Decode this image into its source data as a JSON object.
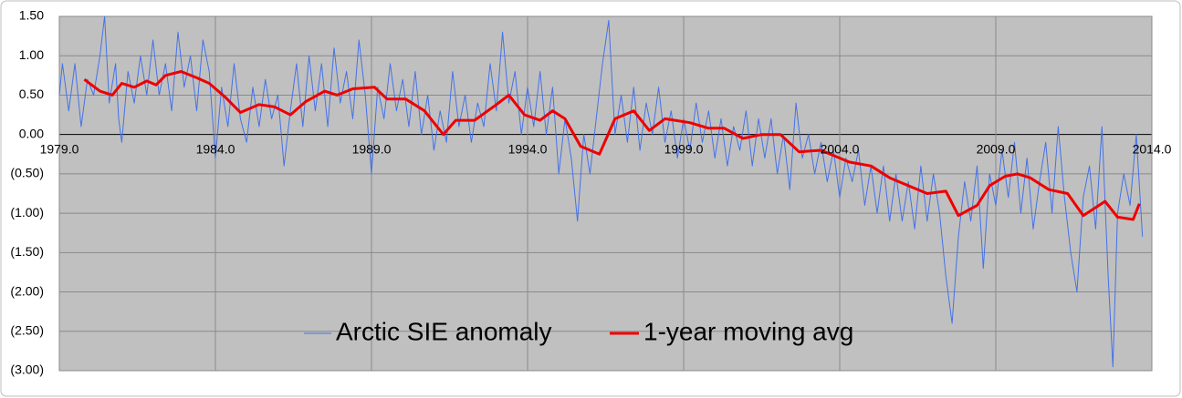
{
  "chart_data": {
    "type": "line",
    "xlim": [
      1979,
      2014
    ],
    "ylim": [
      -3,
      1.5
    ],
    "xticks": [
      {
        "value": 1979,
        "label": "1979.0"
      },
      {
        "value": 1984,
        "label": "1984.0"
      },
      {
        "value": 1989,
        "label": "1989.0"
      },
      {
        "value": 1994,
        "label": "1994.0"
      },
      {
        "value": 1999,
        "label": "1999.0"
      },
      {
        "value": 2004,
        "label": "2004.0"
      },
      {
        "value": 2009,
        "label": "2009.0"
      },
      {
        "value": 2014,
        "label": "2014.0"
      }
    ],
    "yticks": [
      {
        "value": 1.5,
        "label": "1.50"
      },
      {
        "value": 1,
        "label": "1.00"
      },
      {
        "value": 0.5,
        "label": "0.50"
      },
      {
        "value": 0,
        "label": "0.00"
      },
      {
        "value": -0.5,
        "label": "(0.50)"
      },
      {
        "value": -1,
        "label": "(1.00)"
      },
      {
        "value": -1.5,
        "label": "(1.50)"
      },
      {
        "value": -2,
        "label": "(2.00)"
      },
      {
        "value": -2.5,
        "label": "(2.50)"
      },
      {
        "value": -3,
        "label": "(3.00)"
      }
    ],
    "grid": true,
    "negative_tick_color": "#ff0000",
    "series": [
      {
        "name": "Arctic SIE anomaly",
        "color": "#4472e8",
        "width": 1,
        "x": [
          1979.0,
          1979.1,
          1979.3,
          1979.5,
          1979.7,
          1979.9,
          1980.1,
          1980.3,
          1980.45,
          1980.6,
          1980.8,
          1980.9,
          1981.0,
          1981.2,
          1981.4,
          1981.6,
          1981.8,
          1982.0,
          1982.2,
          1982.4,
          1982.6,
          1982.8,
          1983.0,
          1983.2,
          1983.4,
          1983.6,
          1983.8,
          1984.0,
          1984.2,
          1984.4,
          1984.6,
          1984.8,
          1985.0,
          1985.2,
          1985.4,
          1985.6,
          1985.8,
          1986.0,
          1986.2,
          1986.4,
          1986.6,
          1986.8,
          1987.0,
          1987.2,
          1987.4,
          1987.6,
          1987.8,
          1988.0,
          1988.2,
          1988.4,
          1988.6,
          1988.8,
          1989.0,
          1989.2,
          1989.4,
          1989.6,
          1989.8,
          1990.0,
          1990.2,
          1990.4,
          1990.6,
          1990.8,
          1991.0,
          1991.2,
          1991.4,
          1991.6,
          1991.8,
          1992.0,
          1992.2,
          1992.4,
          1992.6,
          1992.8,
          1993.0,
          1993.2,
          1993.4,
          1993.6,
          1993.8,
          1994.0,
          1994.2,
          1994.4,
          1994.6,
          1994.8,
          1995.0,
          1995.2,
          1995.4,
          1995.6,
          1995.8,
          1996.0,
          1996.2,
          1996.4,
          1996.6,
          1996.8,
          1997.0,
          1997.2,
          1997.4,
          1997.6,
          1997.8,
          1998.0,
          1998.2,
          1998.4,
          1998.6,
          1998.8,
          1999.0,
          1999.2,
          1999.4,
          1999.6,
          1999.8,
          2000.0,
          2000.2,
          2000.4,
          2000.6,
          2000.8,
          2001.0,
          2001.2,
          2001.4,
          2001.6,
          2001.8,
          2002.0,
          2002.2,
          2002.4,
          2002.6,
          2002.8,
          2003.0,
          2003.2,
          2003.4,
          2003.6,
          2003.8,
          2004.0,
          2004.2,
          2004.4,
          2004.6,
          2004.8,
          2005.0,
          2005.2,
          2005.4,
          2005.6,
          2005.8,
          2006.0,
          2006.2,
          2006.4,
          2006.6,
          2006.8,
          2007.0,
          2007.2,
          2007.4,
          2007.6,
          2007.8,
          2008.0,
          2008.2,
          2008.4,
          2008.6,
          2008.8,
          2009.0,
          2009.2,
          2009.4,
          2009.6,
          2009.8,
          2010.0,
          2010.2,
          2010.4,
          2010.6,
          2010.8,
          2011.0,
          2011.2,
          2011.4,
          2011.6,
          2011.8,
          2012.0,
          2012.2,
          2012.4,
          2012.6,
          2012.75,
          2012.9,
          2013.1,
          2013.3,
          2013.5,
          2013.7
        ],
        "values": [
          0.5,
          0.9,
          0.3,
          0.9,
          0.1,
          0.7,
          0.5,
          1.0,
          1.5,
          0.4,
          0.9,
          0.2,
          -0.1,
          0.8,
          0.4,
          1.0,
          0.5,
          1.2,
          0.5,
          0.9,
          0.3,
          1.3,
          0.6,
          1.0,
          0.3,
          1.2,
          0.8,
          -0.3,
          0.6,
          0.1,
          0.9,
          0.2,
          -0.1,
          0.6,
          0.1,
          0.7,
          0.2,
          0.5,
          -0.4,
          0.3,
          0.9,
          0.1,
          1.0,
          0.3,
          0.9,
          0.1,
          1.1,
          0.4,
          0.8,
          0.2,
          1.2,
          0.5,
          -0.5,
          0.6,
          0.2,
          0.9,
          0.3,
          0.7,
          0.1,
          0.8,
          0.0,
          0.5,
          -0.2,
          0.3,
          -0.1,
          0.8,
          0.1,
          0.5,
          -0.1,
          0.4,
          0.1,
          0.9,
          0.3,
          1.3,
          0.4,
          0.8,
          0.0,
          0.6,
          0.1,
          0.8,
          0.0,
          0.6,
          -0.5,
          0.2,
          -0.3,
          -1.1,
          0.0,
          -0.5,
          0.2,
          0.9,
          1.45,
          0.0,
          0.5,
          -0.1,
          0.6,
          -0.2,
          0.4,
          0.0,
          0.6,
          -0.1,
          0.3,
          -0.3,
          0.2,
          -0.2,
          0.4,
          -0.1,
          0.3,
          -0.3,
          0.2,
          -0.4,
          0.1,
          -0.2,
          0.3,
          -0.4,
          0.2,
          -0.3,
          0.2,
          -0.5,
          0.0,
          -0.7,
          0.4,
          -0.3,
          0.0,
          -0.5,
          -0.1,
          -0.6,
          -0.2,
          -0.8,
          -0.3,
          -0.6,
          -0.2,
          -0.9,
          -0.4,
          -1.0,
          -0.4,
          -1.1,
          -0.5,
          -1.1,
          -0.6,
          -1.2,
          -0.4,
          -1.1,
          -0.5,
          -1.0,
          -1.8,
          -2.4,
          -1.3,
          -0.6,
          -1.1,
          -0.4,
          -1.7,
          -0.5,
          -0.9,
          -0.2,
          -0.8,
          -0.1,
          -1.0,
          -0.3,
          -1.2,
          -0.6,
          -0.1,
          -1.0,
          0.1,
          -0.8,
          -1.5,
          -2.0,
          -0.8,
          -0.4,
          -1.2,
          0.1,
          -1.8,
          -2.95,
          -1.0,
          -0.5,
          -0.9,
          0.0,
          -1.3
        ]
      },
      {
        "name": "1-year moving avg",
        "color": "#ee0000",
        "width": 3,
        "x": [
          1979.8,
          1980.3,
          1980.7,
          1981.0,
          1981.4,
          1981.8,
          1982.1,
          1982.4,
          1982.9,
          1983.4,
          1983.8,
          1984.3,
          1984.8,
          1985.4,
          1985.9,
          1986.4,
          1986.9,
          1987.5,
          1987.9,
          1988.4,
          1989.1,
          1989.5,
          1990.1,
          1990.7,
          1991.3,
          1991.7,
          1992.3,
          1992.9,
          1993.4,
          1993.9,
          1994.4,
          1994.8,
          1995.2,
          1995.7,
          1996.3,
          1996.8,
          1997.4,
          1997.9,
          1998.4,
          1999.2,
          1999.8,
          2000.3,
          2000.9,
          2001.5,
          2002.1,
          2002.7,
          2003.4,
          2004.3,
          2005.0,
          2005.6,
          2006.2,
          2006.8,
          2007.4,
          2007.8,
          2008.4,
          2008.8,
          2009.3,
          2009.7,
          2010.1,
          2010.7,
          2011.3,
          2011.8,
          2012.5,
          2012.9,
          2013.4,
          2013.6
        ],
        "values": [
          0.7,
          0.55,
          0.5,
          0.65,
          0.6,
          0.68,
          0.63,
          0.75,
          0.8,
          0.72,
          0.65,
          0.48,
          0.28,
          0.38,
          0.35,
          0.25,
          0.42,
          0.55,
          0.5,
          0.58,
          0.6,
          0.45,
          0.45,
          0.3,
          0.0,
          0.18,
          0.18,
          0.35,
          0.5,
          0.25,
          0.18,
          0.3,
          0.2,
          -0.15,
          -0.25,
          0.2,
          0.3,
          0.05,
          0.2,
          0.15,
          0.08,
          0.08,
          -0.05,
          0.0,
          0.0,
          -0.22,
          -0.2,
          -0.35,
          -0.4,
          -0.55,
          -0.65,
          -0.75,
          -0.72,
          -1.03,
          -0.9,
          -0.65,
          -0.53,
          -0.5,
          -0.55,
          -0.7,
          -0.75,
          -1.03,
          -0.85,
          -1.05,
          -1.08,
          -0.88
        ]
      }
    ]
  }
}
